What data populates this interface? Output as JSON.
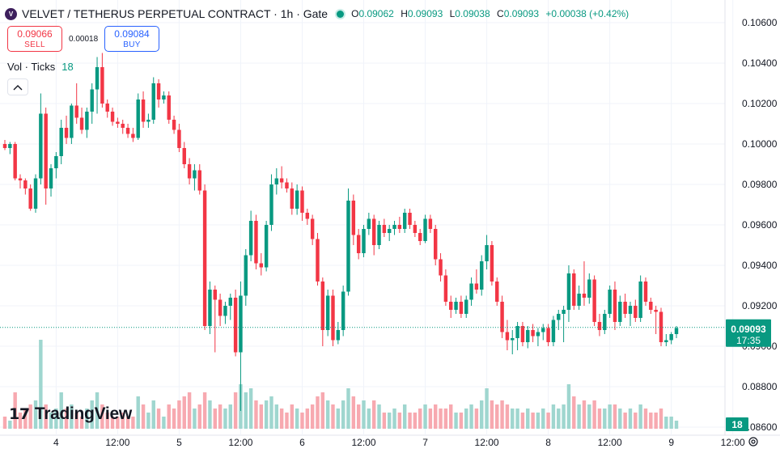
{
  "header": {
    "logo_letter": "V",
    "title": "VELVET / TETHERUS PERPETUAL CONTRACT · 1h · Gate",
    "ohlc": {
      "o_label": "O",
      "o": "0.09062",
      "h_label": "H",
      "h": "0.09093",
      "l_label": "L",
      "l": "0.09038",
      "c_label": "C",
      "c": "0.09093",
      "change": "+0.00038 (+0.42%)"
    }
  },
  "trade": {
    "sell_price": "0.09066",
    "sell_label": "SELL",
    "buy_price": "0.09084",
    "buy_label": "BUY",
    "spread": "0.00018"
  },
  "volume_indicator": {
    "label": "Vol · Ticks",
    "value": "18"
  },
  "branding": {
    "logo_mark": "17",
    "name": "TradingView"
  },
  "colors": {
    "up": "#089981",
    "down": "#f23645",
    "up_vol": "#9fd6cf",
    "down_vol": "#f7a9b0",
    "grid": "#f0f3fa"
  },
  "chart_data": {
    "type": "candlestick",
    "price_axis": {
      "min": 0.086,
      "max": 0.1066,
      "ticks": [
        "0.10600",
        "0.10400",
        "0.10200",
        "0.10000",
        "0.09800",
        "0.09600",
        "0.09400",
        "0.09200",
        "0.09000",
        "0.08800",
        "0.08600"
      ]
    },
    "time_axis": {
      "ticks": [
        "4",
        "12:00",
        "5",
        "12:00",
        "6",
        "12:00",
        "7",
        "12:00",
        "8",
        "12:00",
        "9",
        "12:00"
      ]
    },
    "current_price": {
      "price": "0.09093",
      "countdown": "17:35",
      "value": 0.09093
    },
    "volume_label": "18",
    "candles": [
      [
        0.1,
        0.1002,
        0.0997,
        0.0998,
        3
      ],
      [
        0.0998,
        0.1001,
        0.0995,
        0.1,
        2
      ],
      [
        0.1,
        0.1001,
        0.0982,
        0.0983,
        9
      ],
      [
        0.0983,
        0.0985,
        0.0978,
        0.0982,
        4
      ],
      [
        0.0982,
        0.0983,
        0.0975,
        0.0978,
        5
      ],
      [
        0.0978,
        0.098,
        0.0967,
        0.0968,
        6
      ],
      [
        0.0968,
        0.0985,
        0.0966,
        0.0983,
        7
      ],
      [
        0.0983,
        0.1025,
        0.098,
        0.1015,
        22
      ],
      [
        0.1015,
        0.1018,
        0.097,
        0.0978,
        6
      ],
      [
        0.0978,
        0.099,
        0.0974,
        0.0988,
        4
      ],
      [
        0.0988,
        0.0996,
        0.0983,
        0.0994,
        5
      ],
      [
        0.0994,
        0.1012,
        0.099,
        0.1008,
        9
      ],
      [
        0.1008,
        0.1014,
        0.1,
        0.1003,
        5
      ],
      [
        0.1003,
        0.102,
        0.1,
        0.1019,
        6
      ],
      [
        0.1019,
        0.103,
        0.101,
        0.1013,
        4
      ],
      [
        0.1013,
        0.1018,
        0.1005,
        0.1007,
        3
      ],
      [
        0.1007,
        0.1018,
        0.1003,
        0.1016,
        5
      ],
      [
        0.1016,
        0.103,
        0.101,
        0.1027,
        7
      ],
      [
        0.1027,
        0.1043,
        0.1015,
        0.1038,
        9
      ],
      [
        0.1038,
        0.1045,
        0.1018,
        0.102,
        6
      ],
      [
        0.102,
        0.1022,
        0.1013,
        0.1016,
        4
      ],
      [
        0.1016,
        0.1018,
        0.1009,
        0.1011,
        3
      ],
      [
        0.1011,
        0.1013,
        0.1008,
        0.101,
        3
      ],
      [
        0.101,
        0.1012,
        0.1005,
        0.1008,
        4
      ],
      [
        0.1008,
        0.101,
        0.1003,
        0.1005,
        3
      ],
      [
        0.1005,
        0.1008,
        0.1001,
        0.1003,
        3
      ],
      [
        0.1003,
        0.1025,
        0.1002,
        0.1022,
        8
      ],
      [
        0.1022,
        0.1026,
        0.1008,
        0.1011,
        6
      ],
      [
        0.1011,
        0.1015,
        0.1008,
        0.1012,
        4
      ],
      [
        0.1012,
        0.1033,
        0.101,
        0.103,
        7
      ],
      [
        0.103,
        0.1032,
        0.1018,
        0.1022,
        5
      ],
      [
        0.1022,
        0.1026,
        0.102,
        0.1024,
        3
      ],
      [
        0.1024,
        0.1026,
        0.101,
        0.1012,
        6
      ],
      [
        0.1012,
        0.1014,
        0.1005,
        0.1007,
        5
      ],
      [
        0.1007,
        0.101,
        0.0996,
        0.0998,
        7
      ],
      [
        0.0998,
        0.1001,
        0.0988,
        0.099,
        8
      ],
      [
        0.099,
        0.0993,
        0.098,
        0.0983,
        9
      ],
      [
        0.0983,
        0.099,
        0.0977,
        0.0987,
        5
      ],
      [
        0.0987,
        0.099,
        0.0975,
        0.0977,
        6
      ],
      [
        0.0977,
        0.098,
        0.0908,
        0.091,
        9
      ],
      [
        0.091,
        0.0932,
        0.0906,
        0.0928,
        7
      ],
      [
        0.0928,
        0.093,
        0.0897,
        0.0923,
        5
      ],
      [
        0.0923,
        0.0926,
        0.091,
        0.0915,
        6
      ],
      [
        0.0915,
        0.0922,
        0.0911,
        0.092,
        5
      ],
      [
        0.092,
        0.0926,
        0.0913,
        0.0924,
        6
      ],
      [
        0.0924,
        0.0928,
        0.0895,
        0.0897,
        9
      ],
      [
        0.0897,
        0.0932,
        0.0868,
        0.0925,
        11
      ],
      [
        0.0925,
        0.0948,
        0.092,
        0.0945,
        9
      ],
      [
        0.0945,
        0.0967,
        0.0942,
        0.0962,
        10
      ],
      [
        0.0962,
        0.0965,
        0.0938,
        0.0941,
        7
      ],
      [
        0.0941,
        0.0946,
        0.0935,
        0.0939,
        6
      ],
      [
        0.0939,
        0.0962,
        0.0937,
        0.096,
        7
      ],
      [
        0.096,
        0.0985,
        0.0957,
        0.098,
        8
      ],
      [
        0.098,
        0.0988,
        0.0975,
        0.0983,
        6
      ],
      [
        0.0983,
        0.0989,
        0.0978,
        0.0981,
        5
      ],
      [
        0.0981,
        0.0983,
        0.0976,
        0.0978,
        4
      ],
      [
        0.0978,
        0.0981,
        0.0965,
        0.0968,
        6
      ],
      [
        0.0968,
        0.098,
        0.0965,
        0.0977,
        5
      ],
      [
        0.0977,
        0.0979,
        0.0962,
        0.0966,
        4
      ],
      [
        0.0966,
        0.0968,
        0.096,
        0.0963,
        5
      ],
      [
        0.0963,
        0.0965,
        0.095,
        0.0953,
        6
      ],
      [
        0.0953,
        0.0956,
        0.093,
        0.0932,
        8
      ],
      [
        0.0932,
        0.0934,
        0.09,
        0.0908,
        9
      ],
      [
        0.0908,
        0.0928,
        0.0905,
        0.0925,
        7
      ],
      [
        0.0925,
        0.0928,
        0.09,
        0.0903,
        6
      ],
      [
        0.0903,
        0.0912,
        0.0901,
        0.0908,
        5
      ],
      [
        0.0908,
        0.093,
        0.0905,
        0.0927,
        7
      ],
      [
        0.0927,
        0.0978,
        0.0925,
        0.0972,
        10
      ],
      [
        0.0972,
        0.0975,
        0.095,
        0.0955,
        8
      ],
      [
        0.0955,
        0.0958,
        0.0943,
        0.0946,
        6
      ],
      [
        0.0946,
        0.096,
        0.0944,
        0.0958,
        7
      ],
      [
        0.0958,
        0.0966,
        0.0955,
        0.0963,
        5
      ],
      [
        0.0963,
        0.0965,
        0.0945,
        0.095,
        7
      ],
      [
        0.095,
        0.0962,
        0.0948,
        0.096,
        6
      ],
      [
        0.096,
        0.0963,
        0.0954,
        0.0956,
        4
      ],
      [
        0.0956,
        0.096,
        0.0952,
        0.0958,
        4
      ],
      [
        0.0958,
        0.0962,
        0.0955,
        0.096,
        5
      ],
      [
        0.096,
        0.0964,
        0.0956,
        0.0958,
        4
      ],
      [
        0.0958,
        0.0968,
        0.0956,
        0.0966,
        6
      ],
      [
        0.0966,
        0.0968,
        0.0958,
        0.096,
        4
      ],
      [
        0.096,
        0.0962,
        0.0954,
        0.0956,
        4
      ],
      [
        0.0956,
        0.0958,
        0.095,
        0.0952,
        5
      ],
      [
        0.0952,
        0.0965,
        0.0951,
        0.0963,
        6
      ],
      [
        0.0963,
        0.0965,
        0.0956,
        0.0958,
        5
      ],
      [
        0.0958,
        0.096,
        0.094,
        0.0943,
        6
      ],
      [
        0.0943,
        0.0946,
        0.0932,
        0.0935,
        5
      ],
      [
        0.0935,
        0.0938,
        0.092,
        0.0922,
        5
      ],
      [
        0.0922,
        0.0925,
        0.0914,
        0.0918,
        6
      ],
      [
        0.0918,
        0.0924,
        0.0916,
        0.0922,
        4
      ],
      [
        0.0922,
        0.0925,
        0.0914,
        0.0916,
        4
      ],
      [
        0.0916,
        0.0925,
        0.0914,
        0.0923,
        5
      ],
      [
        0.0923,
        0.0934,
        0.092,
        0.0931,
        6
      ],
      [
        0.0931,
        0.0938,
        0.0926,
        0.0928,
        5
      ],
      [
        0.0928,
        0.0945,
        0.0925,
        0.0942,
        7
      ],
      [
        0.0942,
        0.0955,
        0.0938,
        0.095,
        10
      ],
      [
        0.095,
        0.0952,
        0.093,
        0.0932,
        7
      ],
      [
        0.0932,
        0.0934,
        0.092,
        0.0922,
        6
      ],
      [
        0.0922,
        0.0925,
        0.0904,
        0.0907,
        7
      ],
      [
        0.0907,
        0.0913,
        0.0898,
        0.0903,
        6
      ],
      [
        0.0903,
        0.0908,
        0.0896,
        0.0904,
        5
      ],
      [
        0.0904,
        0.0912,
        0.0898,
        0.091,
        5
      ],
      [
        0.091,
        0.0912,
        0.09,
        0.0902,
        4
      ],
      [
        0.0902,
        0.091,
        0.0899,
        0.0908,
        5
      ],
      [
        0.0908,
        0.0911,
        0.0902,
        0.0905,
        4
      ],
      [
        0.0905,
        0.0909,
        0.09,
        0.0907,
        4
      ],
      [
        0.0907,
        0.0911,
        0.0903,
        0.0909,
        5
      ],
      [
        0.0909,
        0.0911,
        0.09,
        0.0902,
        4
      ],
      [
        0.0902,
        0.0915,
        0.09,
        0.0913,
        6
      ],
      [
        0.0913,
        0.0918,
        0.0908,
        0.0916,
        5
      ],
      [
        0.0916,
        0.092,
        0.0902,
        0.0918,
        6
      ],
      [
        0.0918,
        0.094,
        0.0912,
        0.0936,
        11
      ],
      [
        0.0936,
        0.0938,
        0.0918,
        0.092,
        8
      ],
      [
        0.092,
        0.093,
        0.0918,
        0.0926,
        6
      ],
      [
        0.0926,
        0.0942,
        0.092,
        0.0924,
        7
      ],
      [
        0.0924,
        0.0936,
        0.0921,
        0.0933,
        6
      ],
      [
        0.0933,
        0.0935,
        0.091,
        0.0912,
        7
      ],
      [
        0.0912,
        0.0916,
        0.0905,
        0.0908,
        5
      ],
      [
        0.0908,
        0.0918,
        0.0906,
        0.0916,
        5
      ],
      [
        0.0916,
        0.093,
        0.0914,
        0.0928,
        6
      ],
      [
        0.0928,
        0.0932,
        0.0908,
        0.0912,
        6
      ],
      [
        0.0912,
        0.0925,
        0.091,
        0.0922,
        5
      ],
      [
        0.0922,
        0.0926,
        0.0914,
        0.0916,
        4
      ],
      [
        0.0916,
        0.0922,
        0.091,
        0.092,
        5
      ],
      [
        0.092,
        0.0923,
        0.0912,
        0.0914,
        4
      ],
      [
        0.0914,
        0.0935,
        0.0912,
        0.0932,
        6
      ],
      [
        0.0932,
        0.0934,
        0.092,
        0.0922,
        5
      ],
      [
        0.0922,
        0.0924,
        0.0916,
        0.0918,
        4
      ],
      [
        0.0918,
        0.092,
        0.0906,
        0.0917,
        4
      ],
      [
        0.0917,
        0.0919,
        0.09,
        0.0902,
        5
      ],
      [
        0.0902,
        0.0906,
        0.09,
        0.0903,
        3
      ],
      [
        0.0903,
        0.0907,
        0.0901,
        0.0906,
        3
      ],
      [
        0.0906,
        0.091,
        0.0904,
        0.0909,
        2
      ]
    ]
  }
}
